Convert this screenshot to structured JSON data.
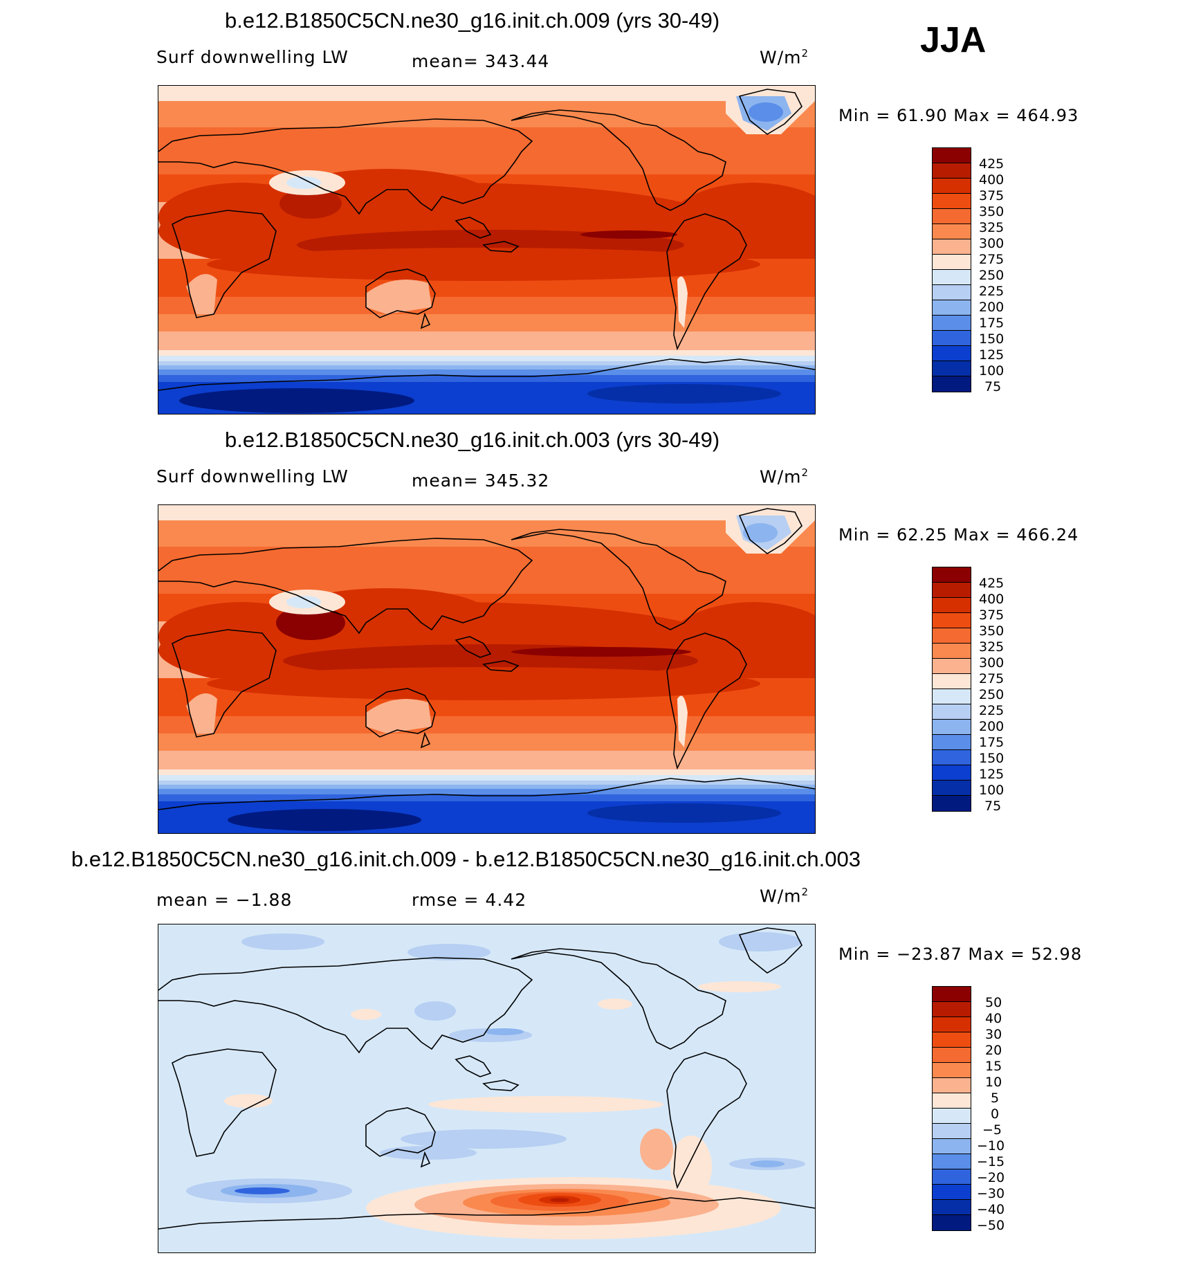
{
  "season": "JJA",
  "panels": [
    {
      "title": "b.e12.B1850C5CN.ne30_g16.init.ch.009 (yrs 30-49)",
      "left_label": "Surf downwelling LW",
      "center_label": "mean= 343.44",
      "units": "W/m",
      "minmax": "Min =   61.90 Max = 464.93"
    },
    {
      "title": "b.e12.B1850C5CN.ne30_g16.init.ch.003 (yrs 30-49)",
      "left_label": "Surf downwelling LW",
      "center_label": "mean= 345.32",
      "units": "W/m",
      "minmax": "Min =   62.25 Max = 466.24"
    },
    {
      "title": "b.e12.B1850C5CN.ne30_g16.init.ch.009 - b.e12.B1850C5CN.ne30_g16.init.ch.003",
      "left_label": "mean =   −1.88",
      "center_label": "rmse =    4.42",
      "units": "W/m",
      "minmax": "Min = −23.87 Max =   52.98"
    }
  ],
  "colorbar_abs": {
    "labels": [
      "425",
      "400",
      "375",
      "350",
      "325",
      "300",
      "275",
      "250",
      "225",
      "200",
      "175",
      "150",
      "125",
      "100",
      "75"
    ],
    "colors": [
      "#8b0000",
      "#b71c00",
      "#d63000",
      "#ee4d12",
      "#f56a30",
      "#f9894f",
      "#fbb28f",
      "#fde6d6",
      "#d6e8f8",
      "#b6cff2",
      "#8cb4ef",
      "#5a8ee8",
      "#3064de",
      "#0c3fcf",
      "#052fa8",
      "#001a80"
    ]
  },
  "colorbar_diff": {
    "labels": [
      "50",
      "40",
      "30",
      "20",
      "15",
      "10",
      "5",
      "0",
      "−5",
      "−10",
      "−15",
      "−20",
      "−30",
      "−40",
      "−50"
    ],
    "colors": [
      "#8b0000",
      "#b71c00",
      "#d63000",
      "#ee4d12",
      "#f56a30",
      "#f9894f",
      "#fbb28f",
      "#fde6d6",
      "#d6e8f8",
      "#b6cff2",
      "#8cb4ef",
      "#5a8ee8",
      "#3064de",
      "#0c3fcf",
      "#052fa8",
      "#001a80"
    ]
  },
  "map_colors": {
    "dark_red": "#b71c00",
    "red": "#d63000",
    "orange_red": "#ee4d12",
    "orange": "#f56a30",
    "salmon": "#f9894f",
    "light_salmon": "#fbb28f",
    "cream": "#fde6d6",
    "pale_blue": "#d6e8f8",
    "light_blue": "#b6cff2",
    "mid_blue": "#8cb4ef",
    "blue": "#3064de",
    "deep_blue": "#0c3fcf",
    "navy": "#052fa8",
    "darkest": "#001a80"
  }
}
